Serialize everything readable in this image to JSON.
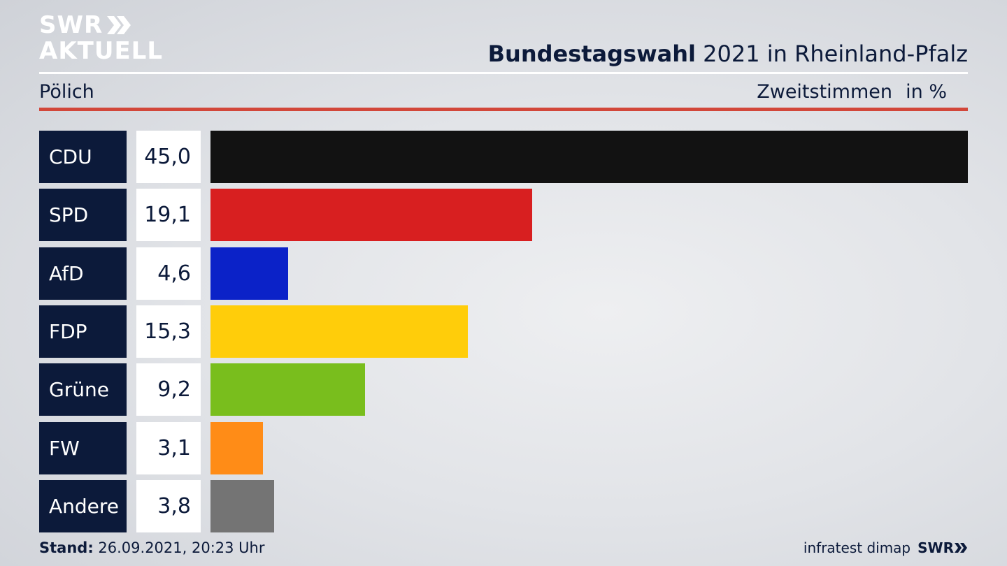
{
  "logo": {
    "line1": "SWR",
    "line2": "AKTUELL"
  },
  "header": {
    "title_bold": "Bundestagswahl",
    "title_rest": " 2021 in Rheinland-Pfalz",
    "region": "Pölich",
    "metric": "Zweitstimmen",
    "unit": "in %"
  },
  "footer": {
    "stand_label": "Stand:",
    "stand_value": " 26.09.2021, 20:23 Uhr",
    "source": "infratest dimap",
    "brand": "SWR"
  },
  "colors": {
    "navy": "#0c1a3a",
    "accent_red": "#d2473a"
  },
  "chart_data": {
    "type": "bar",
    "orientation": "horizontal",
    "categories": [
      "CDU",
      "SPD",
      "AfD",
      "FDP",
      "Grüne",
      "FW",
      "Andere"
    ],
    "values": [
      45.0,
      19.1,
      4.6,
      15.3,
      9.2,
      3.1,
      3.8
    ],
    "value_labels": [
      "45,0",
      "19,1",
      "4,6",
      "15,3",
      "9,2",
      "3,1",
      "3,8"
    ],
    "colors": [
      "#121212",
      "#d81f20",
      "#0b22c8",
      "#ffcd0a",
      "#79be1d",
      "#ff8c17",
      "#747474"
    ],
    "title": "Bundestagswahl 2021 in Rheinland-Pfalz",
    "xlabel": "",
    "ylabel": "",
    "xlim": [
      0,
      45.0
    ]
  }
}
